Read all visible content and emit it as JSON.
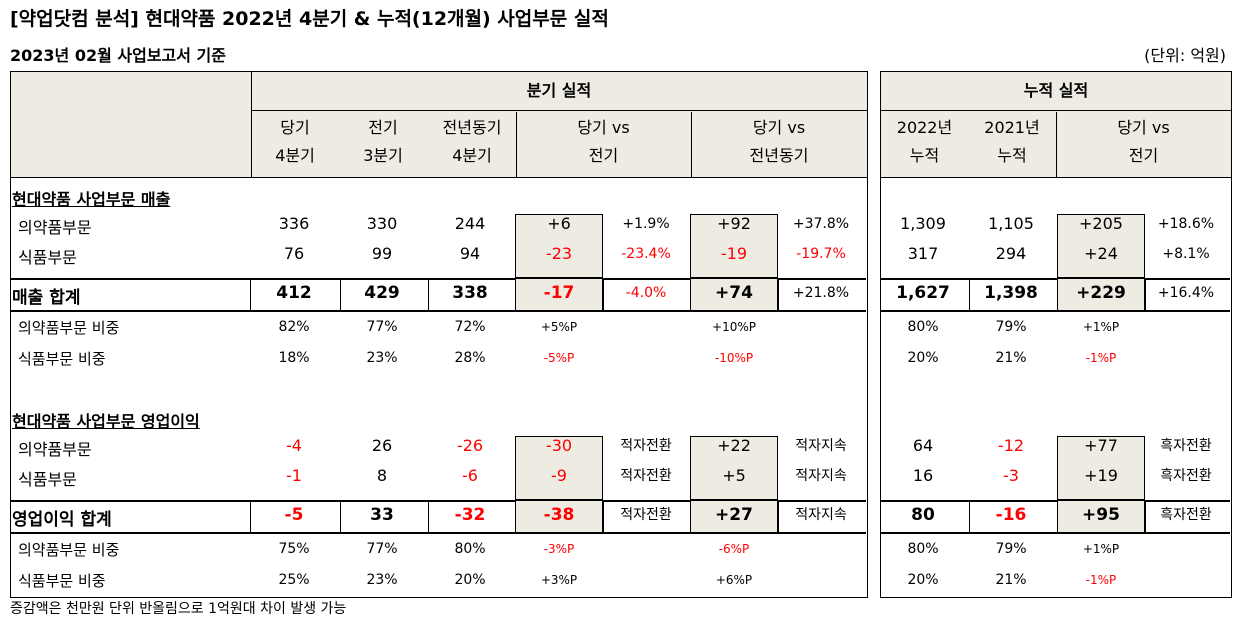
{
  "header": {
    "title": "[약업닷컴 분석] 현대약품 2022년 4분기 & 누적(12개월) 사업부문 실적",
    "subtitle": "2023년 02월 사업보고서 기준",
    "unit": "(단위: 억원)"
  },
  "footnote": "증감액은 천만원 단위 반올림으로 1억원대 차이 발생 가능",
  "quarter_panel": {
    "title": "분기 실적",
    "col_cur": [
      "당기",
      "4분기"
    ],
    "col_prev": [
      "전기",
      "3분기"
    ],
    "col_yoy": [
      "전년동기",
      "4분기"
    ],
    "col_vs_prev": [
      "당기 vs",
      "전기"
    ],
    "col_vs_yoy": [
      "당기 vs",
      "전년동기"
    ]
  },
  "cumulative_panel": {
    "title": "누적 실적",
    "col_2022": [
      "2022년",
      "누적"
    ],
    "col_2021": [
      "2021년",
      "누적"
    ],
    "col_vs": [
      "당기 vs",
      "전기"
    ]
  },
  "sections": [
    {
      "title": "현대약품 사업부문 매출",
      "rows": [
        {
          "label": "의약품부문",
          "q": [
            "336",
            "330",
            "244"
          ],
          "d1": "+6",
          "p1": "+1.9%",
          "d2": "+92",
          "p2": "+37.8%",
          "c": [
            "1,309",
            "1,105"
          ],
          "d3": "+205",
          "p3": "+18.6%"
        },
        {
          "label": "식품부문",
          "q": [
            "76",
            "99",
            "94"
          ],
          "d1": "-23",
          "p1": "-23.4%",
          "d2": "-19",
          "p2": "-19.7%",
          "c": [
            "317",
            "294"
          ],
          "d3": "+24",
          "p3": "+8.1%"
        }
      ],
      "total": {
        "label": "매출 합계",
        "q": [
          "412",
          "429",
          "338"
        ],
        "d1": "-17",
        "p1": "-4.0%",
        "d2": "+74",
        "p2": "+21.8%",
        "c": [
          "1,627",
          "1,398"
        ],
        "d3": "+229",
        "p3": "+16.4%"
      },
      "shares": [
        {
          "label": "의약품부문 비중",
          "q": [
            "82%",
            "77%",
            "72%"
          ],
          "d1": "+5%P",
          "d2": "+10%P",
          "c": [
            "80%",
            "79%"
          ],
          "d3": "+1%P"
        },
        {
          "label": "식품부문 비중",
          "q": [
            "18%",
            "23%",
            "28%"
          ],
          "d1": "-5%P",
          "d2": "-10%P",
          "c": [
            "20%",
            "21%"
          ],
          "d3": "-1%P"
        }
      ]
    },
    {
      "title": "현대약품 사업부문 영업이익",
      "rows": [
        {
          "label": "의약품부문",
          "q": [
            "-4",
            "26",
            "-26"
          ],
          "d1": "-30",
          "p1": "적자전환",
          "d2": "+22",
          "p2": "적자지속",
          "c": [
            "64",
            "-12"
          ],
          "d3": "+77",
          "p3": "흑자전환"
        },
        {
          "label": "식품부문",
          "q": [
            "-1",
            "8",
            "-6"
          ],
          "d1": "-9",
          "p1": "적자전환",
          "d2": "+5",
          "p2": "적자지속",
          "c": [
            "16",
            "-3"
          ],
          "d3": "+19",
          "p3": "흑자전환"
        }
      ],
      "total": {
        "label": "영업이익 합계",
        "q": [
          "-5",
          "33",
          "-32"
        ],
        "d1": "-38",
        "p1": "적자전환",
        "d2": "+27",
        "p2": "적자지속",
        "c": [
          "80",
          "-16"
        ],
        "d3": "+95",
        "p3": "흑자전환"
      },
      "shares": [
        {
          "label": "의약품부문 비중",
          "q": [
            "75%",
            "77%",
            "80%"
          ],
          "d1": "-3%P",
          "d2": "-6%P",
          "c": [
            "80%",
            "79%"
          ],
          "d3": "+1%P"
        },
        {
          "label": "식품부문 비중",
          "q": [
            "25%",
            "23%",
            "20%"
          ],
          "d1": "+3%P",
          "d2": "+6%P",
          "c": [
            "20%",
            "21%"
          ],
          "d3": "-1%P"
        }
      ]
    }
  ]
}
